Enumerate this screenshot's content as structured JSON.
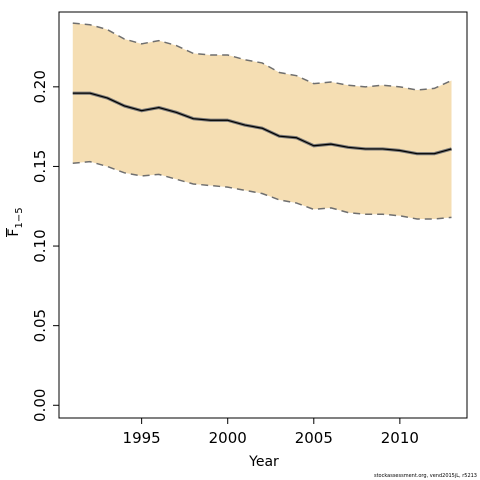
{
  "chart_data": {
    "type": "line",
    "title": "",
    "xlabel": "Year",
    "ylabel": {
      "main": "F",
      "subscript": "1−5"
    },
    "xlim": [
      1990.2,
      2013.9
    ],
    "ylim": [
      -0.008,
      0.247
    ],
    "x_ticks": [
      1995,
      2000,
      2005,
      2010
    ],
    "x_tick_labels": [
      "1995",
      "2000",
      "2005",
      "2010"
    ],
    "y_ticks": [
      0.0,
      0.05,
      0.1,
      0.15,
      0.2
    ],
    "y_tick_labels": [
      "0.00",
      "0.05",
      "0.10",
      "0.15",
      "0.20"
    ],
    "grid": false,
    "x": [
      1991,
      1992,
      1993,
      1994,
      1995,
      1996,
      1997,
      1998,
      1999,
      2000,
      2001,
      2002,
      2003,
      2004,
      2005,
      2006,
      2007,
      2008,
      2009,
      2010,
      2011,
      2012,
      2013
    ],
    "series": [
      {
        "role": "estimate",
        "values": [
          0.196,
          0.196,
          0.193,
          0.188,
          0.185,
          0.187,
          0.184,
          0.18,
          0.179,
          0.179,
          0.176,
          0.174,
          0.169,
          0.168,
          0.163,
          0.164,
          0.162,
          0.161,
          0.161,
          0.16,
          0.158,
          0.158,
          0.161
        ]
      },
      {
        "role": "upper",
        "values": [
          0.24,
          0.239,
          0.236,
          0.23,
          0.227,
          0.229,
          0.226,
          0.221,
          0.22,
          0.22,
          0.217,
          0.215,
          0.209,
          0.207,
          0.202,
          0.203,
          0.201,
          0.2,
          0.201,
          0.2,
          0.198,
          0.199,
          0.204
        ]
      },
      {
        "role": "lower",
        "values": [
          0.152,
          0.153,
          0.15,
          0.146,
          0.144,
          0.145,
          0.142,
          0.139,
          0.138,
          0.137,
          0.135,
          0.133,
          0.129,
          0.127,
          0.123,
          0.124,
          0.121,
          0.12,
          0.12,
          0.119,
          0.117,
          0.117,
          0.118
        ]
      }
    ],
    "colors": {
      "band": "#f5deb3",
      "estimate": "#000000",
      "estimate_halo": "#777777",
      "bounds": "#6f6f6f",
      "axes": "#000000"
    },
    "footer": "stockassessment.org, vend2015jL, r5213"
  }
}
